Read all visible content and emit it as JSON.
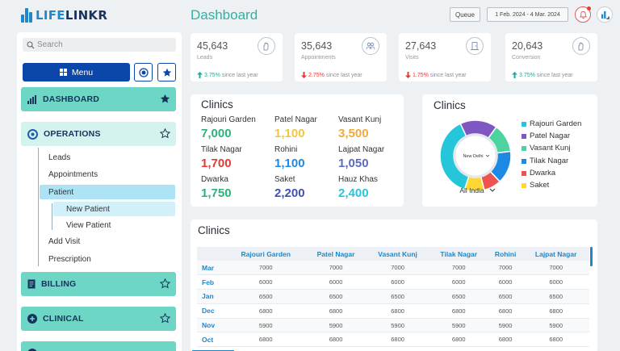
{
  "app": {
    "logo_prefix": "LIFE",
    "logo_suffix": "LINKR",
    "page_title": "Dashboard"
  },
  "header": {
    "queue_label": "Queue",
    "date_range": "1 Feb. 2024 - 4 Mar. 2024"
  },
  "sidebar": {
    "search_placeholder": "Search",
    "menu_label": "Menu",
    "sections": {
      "dashboard": "DASHBOARD",
      "operations": "OPERATIONS",
      "billing": "BILLING",
      "clinical": "CLINICAL"
    },
    "operations_items": [
      "Leads",
      "Appointments",
      "Patient",
      "Add Visit",
      "Prescription"
    ],
    "patient_children": [
      "New Patient",
      "View Patient"
    ]
  },
  "stats": [
    {
      "value": "45,643",
      "label": "Leads",
      "change": "3.75%",
      "trend": "up",
      "suffix": "since last year",
      "icon": "hand-icon"
    },
    {
      "value": "35,643",
      "label": "Appointments",
      "change": "2.75%",
      "trend": "down",
      "suffix": "since last year",
      "icon": "people-icon"
    },
    {
      "value": "27,643",
      "label": "Visits",
      "change": "1.75%",
      "trend": "down",
      "suffix": "since last year",
      "icon": "door-icon"
    },
    {
      "value": "20,643",
      "label": "Conversion",
      "change": "3.75%",
      "trend": "up",
      "suffix": "since last year",
      "icon": "hand-icon"
    }
  ],
  "clinics_summary": {
    "title": "Clinics",
    "items": [
      {
        "name": "Rajouri Garden",
        "value": "7,000",
        "color": "#2bb37a"
      },
      {
        "name": "Patel Nagar",
        "value": "1,100",
        "color": "#f2c53d"
      },
      {
        "name": "Vasant Kunj",
        "value": "3,500",
        "color": "#f2a93b"
      },
      {
        "name": "Tilak Nagar",
        "value": "1,700",
        "color": "#e53935"
      },
      {
        "name": "Rohini",
        "value": "1,100",
        "color": "#1e88e5"
      },
      {
        "name": "Lajpat Nagar",
        "value": "1,050",
        "color": "#5c6bc0"
      },
      {
        "name": "Dwarka",
        "value": "1,750",
        "color": "#2bb37a"
      },
      {
        "name": "Saket",
        "value": "2,200",
        "color": "#3f51b5"
      },
      {
        "name": "Hauz Khas",
        "value": "2,400",
        "color": "#26c6da"
      }
    ]
  },
  "donut": {
    "title": "Clinics",
    "center_label": "New Delhi",
    "footer_label": "All India",
    "legend": [
      {
        "name": "Rajouri Garden",
        "color": "#26c6da"
      },
      {
        "name": "Patel Nagar",
        "color": "#7e57c2"
      },
      {
        "name": "Vasant Kunj",
        "color": "#4cd3a0"
      },
      {
        "name": "Tilak Nagar",
        "color": "#1e88e5"
      },
      {
        "name": "Dwarka",
        "color": "#ef5350"
      },
      {
        "name": "Saket",
        "color": "#fdd835"
      }
    ]
  },
  "chart_data": {
    "type": "pie",
    "title": "Clinics",
    "categories": [
      "Rajouri Garden",
      "Patel Nagar",
      "Vasant Kunj",
      "Tilak Nagar",
      "Dwarka",
      "Saket"
    ],
    "values": [
      38,
      17,
      13,
      15,
      8,
      9
    ],
    "colors": [
      "#26c6da",
      "#7e57c2",
      "#4cd3a0",
      "#1e88e5",
      "#ef5350",
      "#fdd835"
    ]
  },
  "table": {
    "title": "Clinics",
    "columns": [
      "",
      "Rajouri Garden",
      "Patel Nagar",
      "Vasant Kunj",
      "Tilak Nagar",
      "Rohini",
      "Lajpat Nagar"
    ],
    "rows": [
      [
        "Mar",
        "7000",
        "7000",
        "7000",
        "7000",
        "7000",
        "7000"
      ],
      [
        "Feb",
        "6000",
        "6000",
        "6000",
        "6000",
        "6000",
        "6000"
      ],
      [
        "Jan",
        "6500",
        "6500",
        "6500",
        "6500",
        "6500",
        "6500"
      ],
      [
        "Dec",
        "6800",
        "6800",
        "6800",
        "6800",
        "6800",
        "6800"
      ],
      [
        "Nov",
        "5900",
        "5900",
        "5900",
        "5900",
        "5900",
        "5900"
      ],
      [
        "Oct",
        "6800",
        "6800",
        "6800",
        "6800",
        "6800",
        "6800"
      ]
    ]
  }
}
